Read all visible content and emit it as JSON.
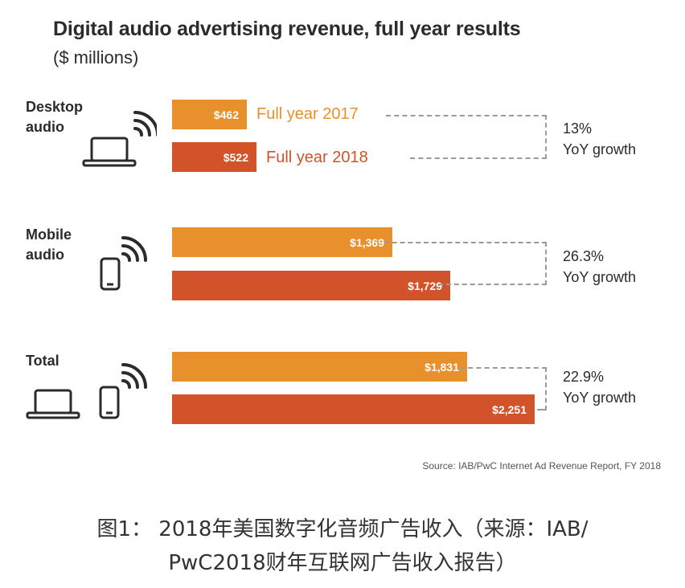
{
  "header": {
    "title": "Digital audio advertising revenue, full year results",
    "subtitle": "($ millions)"
  },
  "legend": {
    "y2017": "Full year 2017",
    "y2018": "Full year 2018"
  },
  "colors": {
    "y2017": "#e8902c",
    "y2018": "#d2522a",
    "text": "#2b2b2b",
    "dash": "#9a9a9a"
  },
  "groups": [
    {
      "label": "Desktop\naudio",
      "icons": [
        "laptop-icon",
        "wifi-signal-icon"
      ],
      "v2017_label": "$462",
      "v2018_label": "$522",
      "growth_pct": "13%",
      "growth_text": "YoY growth"
    },
    {
      "label": "Mobile\naudio",
      "icons": [
        "smartphone-icon",
        "wifi-signal-icon"
      ],
      "v2017_label": "$1,369",
      "v2018_label": "$1,729",
      "growth_pct": "26.3%",
      "growth_text": "YoY growth"
    },
    {
      "label": "Total",
      "icons": [
        "laptop-icon",
        "smartphone-icon",
        "wifi-signal-icon"
      ],
      "v2017_label": "$1,831",
      "v2018_label": "$2,251",
      "growth_pct": "22.9%",
      "growth_text": "YoY growth"
    }
  ],
  "source": "Source: IAB/PwC Internet Ad Revenue Report, FY 2018",
  "caption": {
    "line1": "图1： 2018年美国数字化音频广告收入（来源：IAB/",
    "line2": "PwC2018财年互联网广告收入报告）"
  },
  "chart_data": {
    "type": "bar",
    "orientation": "horizontal",
    "title": "Digital audio advertising revenue, full year results",
    "subtitle": "($ millions)",
    "categories": [
      "Desktop audio",
      "Mobile audio",
      "Total"
    ],
    "series": [
      {
        "name": "Full year 2017",
        "values": [
          462,
          1369,
          1831
        ]
      },
      {
        "name": "Full year 2018",
        "values": [
          522,
          1729,
          2251
        ]
      }
    ],
    "annotations": [
      {
        "category": "Desktop audio",
        "text": "13% YoY growth"
      },
      {
        "category": "Mobile audio",
        "text": "26.3% YoY growth"
      },
      {
        "category": "Total",
        "text": "22.9% YoY growth"
      }
    ],
    "xlim": [
      0,
      2251
    ],
    "grid": false,
    "axes_visible": false
  }
}
